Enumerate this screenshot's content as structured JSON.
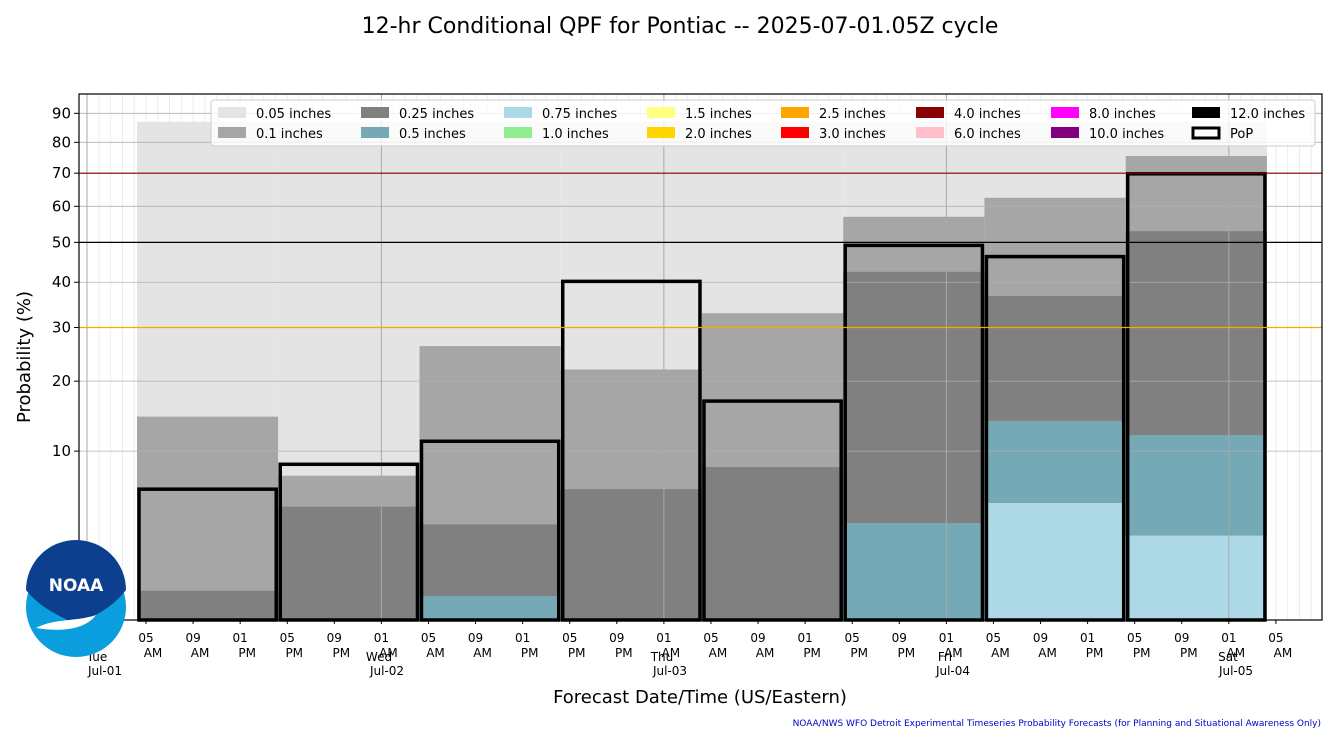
{
  "chart_data": {
    "type": "bar",
    "title": "12-hr Conditional QPF for Pontiac -- 2025-07-01.05Z cycle",
    "xlabel": "Forecast Date/Time (US/Eastern)",
    "ylabel": "Probability (%)",
    "ylim": [
      0,
      97
    ],
    "y_scale": "sqrt",
    "yticks": [
      10,
      20,
      30,
      40,
      50,
      60,
      70,
      80,
      90
    ],
    "grid": true,
    "legend_position": "top",
    "x_ticks": [
      {
        "hour": "05",
        "ampm": "AM"
      },
      {
        "hour": "09",
        "ampm": "AM"
      },
      {
        "hour": "01",
        "ampm": "PM"
      },
      {
        "hour": "05",
        "ampm": "PM"
      },
      {
        "hour": "09",
        "ampm": "PM"
      },
      {
        "hour": "01",
        "ampm": "AM"
      },
      {
        "hour": "05",
        "ampm": "AM"
      },
      {
        "hour": "09",
        "ampm": "AM"
      },
      {
        "hour": "01",
        "ampm": "PM"
      },
      {
        "hour": "05",
        "ampm": "PM"
      },
      {
        "hour": "09",
        "ampm": "PM"
      },
      {
        "hour": "01",
        "ampm": "AM"
      },
      {
        "hour": "05",
        "ampm": "AM"
      },
      {
        "hour": "09",
        "ampm": "AM"
      },
      {
        "hour": "01",
        "ampm": "PM"
      },
      {
        "hour": "05",
        "ampm": "PM"
      },
      {
        "hour": "09",
        "ampm": "PM"
      },
      {
        "hour": "01",
        "ampm": "AM"
      },
      {
        "hour": "05",
        "ampm": "AM"
      },
      {
        "hour": "09",
        "ampm": "AM"
      },
      {
        "hour": "01",
        "ampm": "PM"
      },
      {
        "hour": "05",
        "ampm": "PM"
      },
      {
        "hour": "09",
        "ampm": "PM"
      },
      {
        "hour": "01",
        "ampm": "AM"
      },
      {
        "hour": "05",
        "ampm": "AM"
      }
    ],
    "day_labels": [
      {
        "day": "Tue",
        "date": "Jul-01"
      },
      {
        "day": "Wed",
        "date": "Jul-02"
      },
      {
        "day": "Thu",
        "date": "Jul-03"
      },
      {
        "day": "Fri",
        "date": "Jul-04"
      },
      {
        "day": "Sat",
        "date": "Jul-05"
      }
    ],
    "periods": [
      "Jul-01 05 AM - 05 PM",
      "Jul-01 05 PM - Jul-02 05 AM",
      "Jul-02 05 AM - 05 PM",
      "Jul-02 05 PM - Jul-03 05 AM",
      "Jul-03 05 AM - 05 PM",
      "Jul-03 05 PM - Jul-04 05 AM",
      "Jul-04 05 AM - 05 PM",
      "Jul-04 05 PM - Jul-05 05 AM"
    ],
    "series": [
      {
        "name": "0.05 inches",
        "color": "#e4e4e4",
        "values": [
          87,
          87,
          87,
          87,
          87,
          87,
          87,
          87
        ]
      },
      {
        "name": "0.1 inches",
        "color": "#a6a6a6",
        "values": [
          14.5,
          7.3,
          26.3,
          22,
          33,
          57,
          62.5,
          75.5
        ]
      },
      {
        "name": "0.25 inches",
        "color": "#808080",
        "values": [
          0.3,
          4.5,
          3.2,
          6,
          8.2,
          42.5,
          36.8,
          53
        ]
      },
      {
        "name": "0.5 inches",
        "color": "#74a9b5",
        "values": [
          0,
          0,
          0.2,
          0,
          0,
          3.3,
          13.9,
          12
        ]
      },
      {
        "name": "0.75 inches",
        "color": "#add8e6",
        "values": [
          0,
          0,
          0,
          0,
          0,
          0,
          4.8,
          2.5
        ]
      },
      {
        "name": "1.0 inches",
        "color": "#90ee90",
        "values": [
          0,
          0,
          0,
          0,
          0,
          0,
          0,
          0
        ]
      },
      {
        "name": "1.5 inches",
        "color": "#ffff80",
        "values": [
          0,
          0,
          0,
          0,
          0,
          0,
          0,
          0
        ]
      },
      {
        "name": "2.0 inches",
        "color": "#ffd700",
        "values": [
          0,
          0,
          0,
          0,
          0,
          0,
          0,
          0
        ]
      },
      {
        "name": "2.5 inches",
        "color": "#ffa500",
        "values": [
          0,
          0,
          0,
          0,
          0,
          0,
          0,
          0
        ]
      },
      {
        "name": "3.0 inches",
        "color": "#ff0000",
        "values": [
          0,
          0,
          0,
          0,
          0,
          0,
          0,
          0
        ]
      },
      {
        "name": "4.0 inches",
        "color": "#8b0000",
        "values": [
          0,
          0,
          0,
          0,
          0,
          0,
          0,
          0
        ]
      },
      {
        "name": "6.0 inches",
        "color": "#ffc0cb",
        "values": [
          0,
          0,
          0,
          0,
          0,
          0,
          0,
          0
        ]
      },
      {
        "name": "8.0 inches",
        "color": "#ff00ff",
        "values": [
          0,
          0,
          0,
          0,
          0,
          0,
          0,
          0
        ]
      },
      {
        "name": "10.0 inches",
        "color": "#800080",
        "values": [
          0,
          0,
          0,
          0,
          0,
          0,
          0,
          0
        ]
      },
      {
        "name": "12.0 inches",
        "color": "#000000",
        "values": [
          0,
          0,
          0,
          0,
          0,
          0,
          0,
          0
        ]
      }
    ],
    "pop": {
      "name": "PoP",
      "values": [
        6,
        8.5,
        11.2,
        40.2,
        16.8,
        49.2,
        46.3,
        69.8
      ]
    },
    "reference_lines": [
      {
        "value": 70,
        "color": "#8b0000"
      },
      {
        "value": 50,
        "color": "#000000"
      },
      {
        "value": 30,
        "color": "#ffa500"
      }
    ]
  },
  "footnote": "NOAA/NWS WFO Detroit Experimental Timeseries Probability Forecasts (for Planning and Situational Awareness Only)",
  "logo": {
    "text": "NOAA"
  }
}
